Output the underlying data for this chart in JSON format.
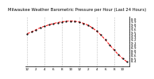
{
  "title": "Milwaukee Weather Barometric Pressure per Hour (Last 24 Hours)",
  "hours": [
    0,
    1,
    2,
    3,
    4,
    5,
    6,
    7,
    8,
    9,
    10,
    11,
    12,
    13,
    14,
    15,
    16,
    17,
    18,
    19,
    20,
    21,
    22,
    23
  ],
  "pressure": [
    29.45,
    29.52,
    29.6,
    29.68,
    29.74,
    29.79,
    29.84,
    29.88,
    29.91,
    29.93,
    29.94,
    29.93,
    29.9,
    29.85,
    29.78,
    29.68,
    29.55,
    29.4,
    29.22,
    29.02,
    28.83,
    28.65,
    28.5,
    28.37
  ],
  "line_color": "#ff0000",
  "marker_color": "#000000",
  "bg_color": "#ffffff",
  "grid_color": "#888888",
  "ylim_min": 28.2,
  "ylim_max": 30.1,
  "ytick_values": [
    28.4,
    28.5,
    28.6,
    28.7,
    28.8,
    28.9,
    29.0,
    29.1,
    29.2,
    29.3,
    29.4,
    29.5,
    29.6,
    29.7,
    29.8,
    29.9,
    30.0
  ],
  "ytick_labels": [
    "8.4",
    "8.5",
    "8.6",
    "8.7",
    "8.8",
    "8.9",
    "9.0",
    "9.1",
    "9.2",
    "9.3",
    "9.4",
    "9.5",
    "9.6",
    "9.7",
    "9.8",
    "9.9",
    "0.0"
  ],
  "xtick_positions": [
    0,
    2,
    4,
    6,
    8,
    10,
    12,
    14,
    16,
    18,
    20,
    22
  ],
  "xtick_labels": [
    "12",
    "2",
    "4",
    "6",
    "8",
    "10",
    "12",
    "2",
    "4",
    "6",
    "8",
    "10"
  ],
  "title_fontsize": 3.8,
  "tick_fontsize": 3.0,
  "linewidth": 0.7,
  "marker_size": 1.2,
  "grid_positions": [
    0,
    4,
    8,
    12,
    16,
    20
  ]
}
